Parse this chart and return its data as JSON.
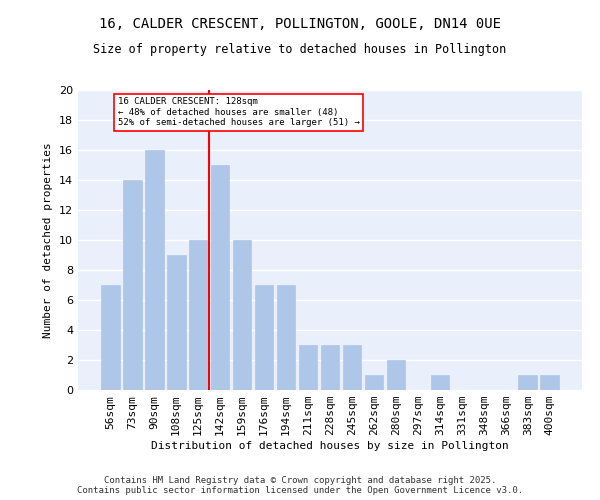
{
  "title": "16, CALDER CRESCENT, POLLINGTON, GOOLE, DN14 0UE",
  "subtitle": "Size of property relative to detached houses in Pollington",
  "xlabel": "Distribution of detached houses by size in Pollington",
  "ylabel": "Number of detached properties",
  "categories": [
    "56sqm",
    "73sqm",
    "90sqm",
    "108sqm",
    "125sqm",
    "142sqm",
    "159sqm",
    "176sqm",
    "194sqm",
    "211sqm",
    "228sqm",
    "245sqm",
    "262sqm",
    "280sqm",
    "297sqm",
    "314sqm",
    "331sqm",
    "348sqm",
    "366sqm",
    "383sqm",
    "400sqm"
  ],
  "values": [
    7,
    14,
    16,
    9,
    10,
    15,
    10,
    7,
    7,
    3,
    3,
    3,
    1,
    2,
    0,
    1,
    0,
    0,
    0,
    1,
    1
  ],
  "bar_color": "#aec6e8",
  "bar_edgecolor": "#aec6e8",
  "ylim": [
    0,
    20
  ],
  "yticks": [
    0,
    2,
    4,
    6,
    8,
    10,
    12,
    14,
    16,
    18,
    20
  ],
  "property_line_x": 4.5,
  "annotation_line1": "16 CALDER CRESCENT: 128sqm",
  "annotation_line2": "← 48% of detached houses are smaller (48)",
  "annotation_line3": "52% of semi-detached houses are larger (51) →",
  "footer": "Contains HM Land Registry data © Crown copyright and database right 2025.\nContains public sector information licensed under the Open Government Licence v3.0.",
  "bg_color": "#eaf0fb",
  "grid_color": "#ffffff"
}
